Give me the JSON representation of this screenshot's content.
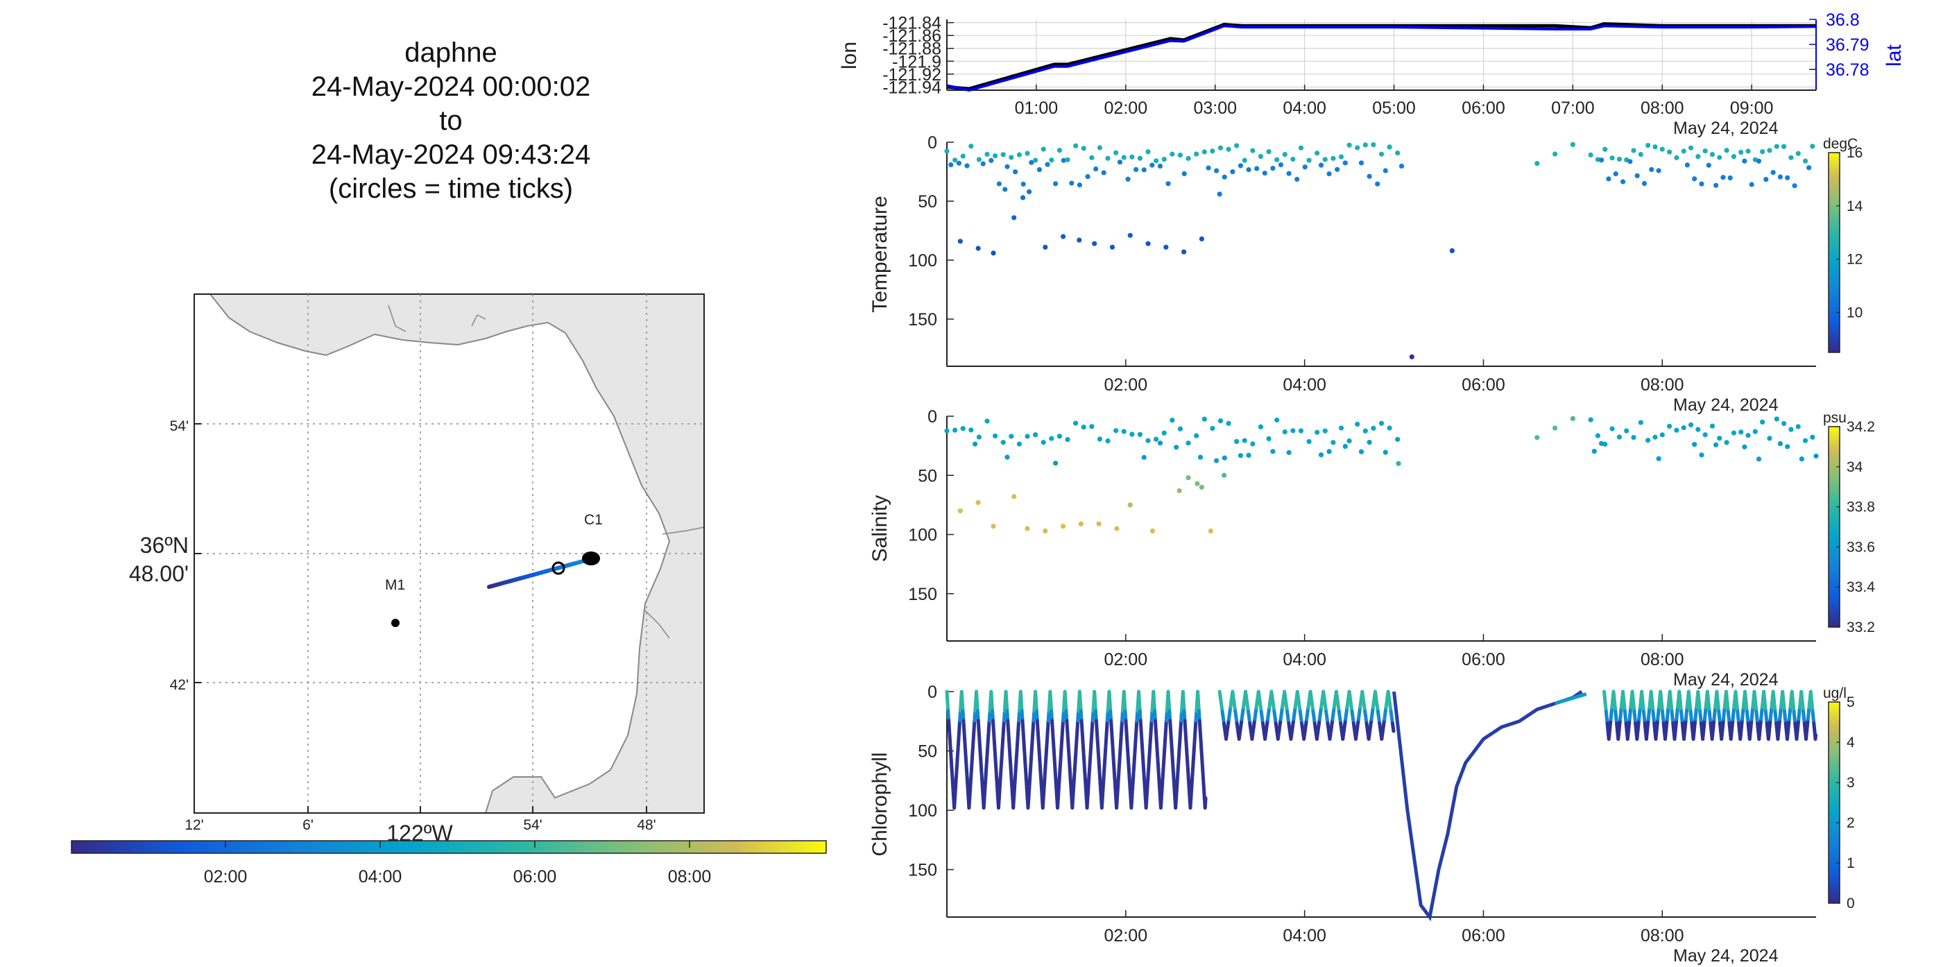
{
  "title": {
    "lines": [
      "daphne",
      "24-May-2024 00:00:02",
      "to",
      "24-May-2024 09:43:24",
      "(circles = time ticks)"
    ]
  },
  "map": {
    "lat_ticks": [
      "54'",
      "48.00'",
      "42'"
    ],
    "lat_degree_label": "36ºN",
    "lon_ticks": [
      "12'",
      "6'",
      "54'",
      "48'"
    ],
    "lon_degree_label": "122ºW",
    "stations": [
      {
        "name": "M1"
      },
      {
        "name": "C1"
      }
    ],
    "colorbar_ticks": [
      "02:00",
      "04:00",
      "06:00",
      "08:00"
    ],
    "colors": {
      "land": "#e6e6e6",
      "coast": "#888888"
    }
  },
  "chart_data": [
    {
      "type": "line",
      "panel": "position",
      "ylabel": "lon",
      "ylabel_right": "lat",
      "yticks_left": [
        "-121.84",
        "-121.86",
        "-121.88",
        "-121.9",
        "-121.92",
        "-121.94"
      ],
      "yticks_right": [
        "36.8",
        "36.79",
        "36.78"
      ],
      "xticks": [
        "01:00",
        "02:00",
        "03:00",
        "04:00",
        "05:00",
        "06:00",
        "07:00",
        "08:00",
        "09:00"
      ],
      "date_label": "May 24, 2024",
      "xlim_hours": [
        0,
        9.72
      ],
      "ylim": [
        -121.945,
        -121.835
      ],
      "series": [
        {
          "color": "#000000",
          "x": [
            0,
            0.25,
            1.2,
            1.35,
            2.5,
            2.65,
            3.1,
            3.3,
            5.0,
            6.8,
            7.2,
            7.35,
            8.0,
            9.0,
            9.72
          ],
          "y": [
            -121.94,
            -121.943,
            -121.905,
            -121.905,
            -121.865,
            -121.867,
            -121.843,
            -121.845,
            -121.845,
            -121.845,
            -121.848,
            -121.842,
            -121.845,
            -121.845,
            -121.845
          ]
        },
        {
          "color": "#0000ee",
          "x": [
            0,
            0.25,
            1.2,
            1.35,
            2.5,
            2.65,
            3.1,
            3.3,
            5.0,
            6.8,
            7.2,
            7.35,
            8.0,
            9.0,
            9.72
          ],
          "y": [
            -121.938,
            -121.945,
            -121.908,
            -121.908,
            -121.868,
            -121.869,
            -121.845,
            -121.847,
            -121.847,
            -121.85,
            -121.85,
            -121.845,
            -121.847,
            -121.847,
            -121.846
          ]
        }
      ],
      "colors": {
        "primary": "#000000",
        "secondary": "#0000ee"
      }
    },
    {
      "type": "scatter",
      "panel": "temperature",
      "ylabel": "Temperature",
      "yticks": [
        "0",
        "50",
        "100",
        "150"
      ],
      "ylim": [
        0,
        190
      ],
      "xticks": [
        "02:00",
        "04:00",
        "06:00",
        "08:00"
      ],
      "xlim_hours": [
        0,
        9.72
      ],
      "date_label": "May 24, 2024",
      "colorbar_unit": "degC",
      "colorbar_ticks": [
        "16",
        "14",
        "12",
        "10"
      ],
      "clim": [
        8.5,
        16
      ],
      "deep_points": [
        [
          0.15,
          84,
          9.3
        ],
        [
          0.35,
          90,
          9.2
        ],
        [
          0.52,
          94,
          9.2
        ],
        [
          1.1,
          89,
          9.3
        ],
        [
          1.3,
          80,
          9.4
        ],
        [
          1.48,
          83,
          9.3
        ],
        [
          1.65,
          86,
          9.3
        ],
        [
          1.85,
          89,
          9.3
        ],
        [
          2.05,
          79,
          9.4
        ],
        [
          2.25,
          86,
          9.3
        ],
        [
          2.45,
          89,
          9.3
        ],
        [
          2.65,
          93,
          9.2
        ],
        [
          2.85,
          82,
          9.3
        ],
        [
          5.65,
          92,
          9.2
        ],
        [
          5.2,
          182,
          8.7
        ],
        [
          0.65,
          40,
          10.2
        ],
        [
          0.75,
          64,
          9.6
        ],
        [
          0.85,
          47,
          10.0
        ],
        [
          0.92,
          42,
          10.1
        ],
        [
          3.05,
          44,
          10.2
        ]
      ]
    },
    {
      "type": "scatter",
      "panel": "salinity",
      "ylabel": "Salinity",
      "yticks": [
        "0",
        "50",
        "100",
        "150"
      ],
      "ylim": [
        0,
        190
      ],
      "xticks": [
        "02:00",
        "04:00",
        "06:00",
        "08:00"
      ],
      "xlim_hours": [
        0,
        9.72
      ],
      "date_label": "May 24, 2024",
      "colorbar_unit": "psu",
      "colorbar_ticks": [
        "34.2",
        "34",
        "33.8",
        "33.6",
        "33.4",
        "33.2"
      ],
      "clim": [
        33.2,
        34.2
      ],
      "deep_points": [
        [
          0.15,
          80,
          33.97
        ],
        [
          0.35,
          73,
          33.97
        ],
        [
          0.52,
          93,
          33.97
        ],
        [
          0.75,
          68,
          33.97
        ],
        [
          0.9,
          95,
          33.97
        ],
        [
          1.1,
          97,
          33.97
        ],
        [
          1.3,
          93,
          33.97
        ],
        [
          1.5,
          91,
          33.97
        ],
        [
          1.7,
          91,
          33.97
        ],
        [
          1.9,
          95,
          33.97
        ],
        [
          2.05,
          75,
          33.9
        ],
        [
          2.3,
          97,
          33.97
        ],
        [
          2.6,
          63,
          33.85
        ],
        [
          2.7,
          52,
          33.8
        ],
        [
          2.8,
          57,
          33.8
        ],
        [
          2.85,
          60,
          33.8
        ],
        [
          2.95,
          97,
          33.97
        ],
        [
          3.1,
          50,
          33.75
        ],
        [
          5.05,
          40,
          33.7
        ]
      ]
    },
    {
      "type": "line",
      "panel": "chlorophyll",
      "ylabel": "Chlorophyll",
      "yticks": [
        "0",
        "50",
        "100",
        "150"
      ],
      "ylim": [
        0,
        190
      ],
      "xticks": [
        "02:00",
        "04:00",
        "06:00",
        "08:00"
      ],
      "xlim_hours": [
        0,
        9.72
      ],
      "date_label": "May 24, 2024",
      "colorbar_unit": "ug/l",
      "colorbar_ticks": [
        "5",
        "4",
        "3",
        "2",
        "1",
        "0"
      ],
      "clim": [
        0,
        5
      ],
      "descent_profile": {
        "x": [
          5.0,
          5.15,
          5.3,
          5.4,
          5.5,
          5.6,
          5.7,
          5.8,
          5.9,
          6.0,
          6.2,
          6.4,
          6.6,
          6.8,
          7.0,
          7.1
        ],
        "y": [
          0,
          100,
          180,
          190,
          150,
          120,
          80,
          60,
          50,
          40,
          30,
          25,
          15,
          10,
          5,
          0
        ]
      }
    }
  ],
  "colors": {
    "parula_low": "#352a87",
    "parula_mid": "#0fb0b0",
    "parula_high": "#f9fb0e",
    "axis": "#222222",
    "grid": "#cccccc",
    "right_axis": "#0000ee"
  }
}
